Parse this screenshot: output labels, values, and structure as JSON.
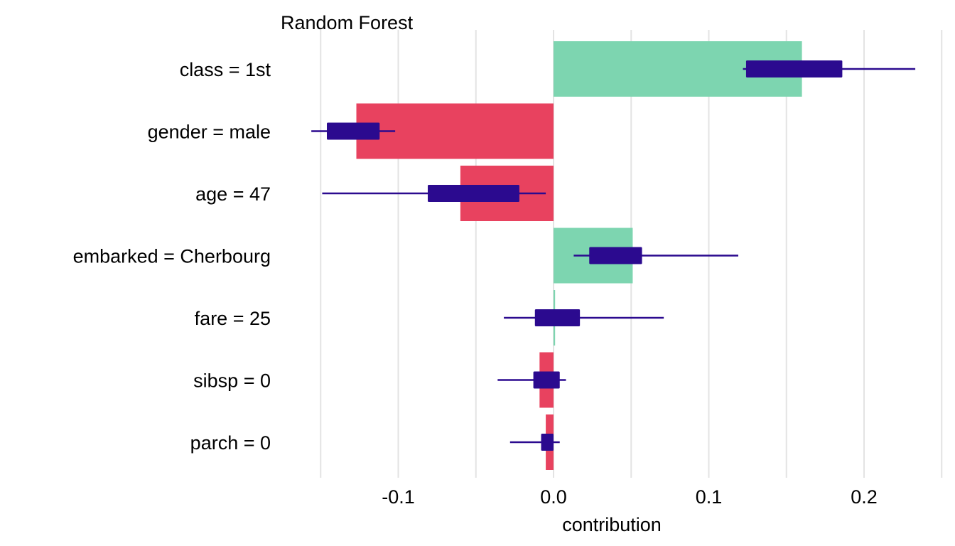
{
  "chart_data": {
    "type": "bar",
    "orientation": "horizontal",
    "subtitle": "Random Forest",
    "xlabel": "contribution",
    "xlim": [
      -0.16,
      0.25
    ],
    "xticks": [
      -0.1,
      0.0,
      0.1,
      0.2
    ],
    "xtick_labels": [
      "-0.1",
      "0.0",
      "0.1",
      "0.2"
    ],
    "grid": true,
    "legend": "none",
    "colors": {
      "positive": "#7dd5b0",
      "negative": "#e8425f",
      "boxplot": "#2b0a8f"
    },
    "categories": [
      "class = 1st",
      "gender = male",
      "age = 47",
      "embarked = Cherbourg",
      "fare = 25",
      "sibsp = 0",
      "parch = 0"
    ],
    "values": [
      0.16,
      -0.127,
      -0.06,
      0.051,
      0.001,
      -0.009,
      -0.005
    ],
    "boxplots": [
      {
        "min": 0.122,
        "q1": 0.124,
        "q3": 0.186,
        "max": 0.233
      },
      {
        "min": -0.156,
        "q1": -0.146,
        "q3": -0.112,
        "max": -0.102
      },
      {
        "min": -0.149,
        "q1": -0.081,
        "q3": -0.022,
        "max": -0.005
      },
      {
        "min": 0.013,
        "q1": 0.023,
        "q3": 0.057,
        "max": 0.119
      },
      {
        "min": -0.032,
        "q1": -0.012,
        "q3": 0.017,
        "max": 0.071
      },
      {
        "min": -0.036,
        "q1": -0.013,
        "q3": 0.004,
        "max": 0.008
      },
      {
        "min": -0.028,
        "q1": -0.008,
        "q3": 0.0,
        "max": 0.004
      }
    ]
  }
}
